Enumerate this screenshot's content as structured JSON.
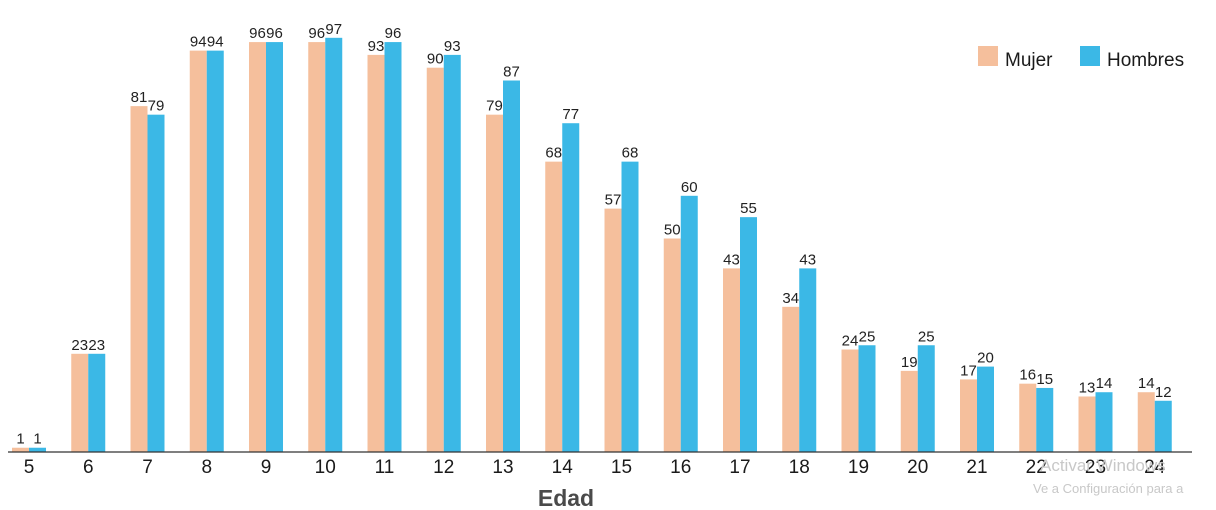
{
  "chart_data": {
    "type": "bar",
    "categories": [
      "5",
      "6",
      "7",
      "8",
      "9",
      "10",
      "11",
      "12",
      "13",
      "14",
      "15",
      "16",
      "17",
      "18",
      "19",
      "20",
      "21",
      "22",
      "23",
      "24"
    ],
    "series": [
      {
        "name": "Mujer",
        "color": "#f5bf9c",
        "values": [
          1,
          23,
          81,
          94,
          96,
          96,
          93,
          90,
          79,
          68,
          57,
          50,
          43,
          34,
          24,
          19,
          17,
          16,
          13,
          14
        ]
      },
      {
        "name": "Hombres",
        "color": "#3bb8e6",
        "values": [
          1,
          23,
          79,
          94,
          96,
          97,
          96,
          93,
          87,
          77,
          68,
          60,
          55,
          43,
          25,
          25,
          20,
          15,
          14,
          12
        ]
      }
    ],
    "xlabel": "Edad",
    "ylabel": "",
    "ylim": [
      0,
      100
    ],
    "grid": false,
    "legend_position": "top-right"
  },
  "watermark": {
    "title": "Activar Windows",
    "subtitle": "Ve a Configuración para a"
  }
}
